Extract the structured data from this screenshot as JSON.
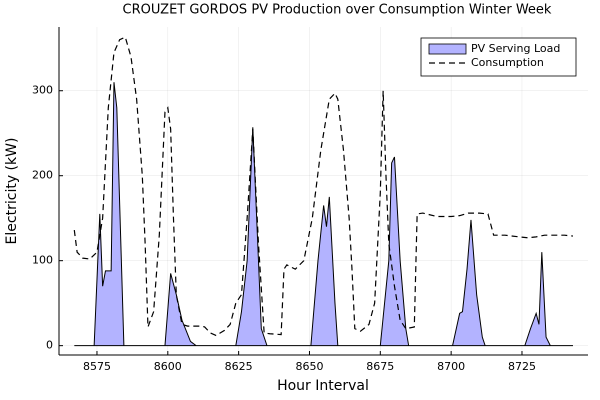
{
  "chart_data": {
    "type": "area",
    "title": "CROUZET GORDOS PV Production over Consumption Winter Week",
    "x_label": "Hour Interval",
    "y_label": "Electricity (kW)",
    "xlim": [
      8561.6,
      8748.3
    ],
    "ylim": [
      -11,
      375
    ],
    "xticks": [
      8575,
      8600,
      8625,
      8650,
      8675,
      8700,
      8725
    ],
    "yticks": [
      0,
      100,
      200,
      300
    ],
    "grid": true,
    "legend": "top right",
    "series": [
      {
        "name": "PV Serving Load",
        "type": "area",
        "color": "#b3b3ff",
        "line_color": "#000000",
        "x": [
          8567,
          8574,
          8576,
          8577,
          8578,
          8580,
          8581,
          8582,
          8584.5,
          8599,
          8601,
          8603,
          8605,
          8608,
          8610,
          8624,
          8626,
          8628,
          8630,
          8632,
          8633,
          8635,
          8650.5,
          8653,
          8655,
          8656,
          8657,
          8659,
          8660,
          8675,
          8678,
          8679,
          8680,
          8682,
          8684,
          8685,
          8700.5,
          8703,
          8704,
          8705.6,
          8707,
          8709,
          8711,
          8712,
          8726,
          8728,
          8730,
          8731,
          8732,
          8733.5,
          8735,
          8743
        ],
        "values": [
          0,
          0,
          155,
          70,
          88,
          88,
          310,
          280,
          0,
          0,
          85,
          60,
          30,
          5,
          0,
          0,
          40,
          100,
          257,
          100,
          20,
          0,
          0,
          100,
          165,
          140,
          175,
          50,
          0,
          0,
          100,
          215,
          222,
          100,
          20,
          0,
          0,
          38,
          40,
          90,
          148,
          60,
          10,
          0,
          0,
          20,
          38,
          25,
          110,
          10,
          0,
          0
        ]
      },
      {
        "name": "Consumption",
        "type": "line",
        "dash": true,
        "color": "#000000",
        "x": [
          8567,
          8568,
          8570,
          8572.5,
          8575,
          8577,
          8579,
          8581,
          8583,
          8585,
          8587,
          8589,
          8591,
          8592,
          8593,
          8595,
          8597,
          8599,
          8600,
          8601,
          8602,
          8603,
          8605,
          8607,
          8612,
          8613,
          8615,
          8617,
          8620,
          8622,
          8624,
          8626,
          8628,
          8630,
          8632,
          8634,
          8636,
          8640,
          8641,
          8642,
          8645,
          8648,
          8651,
          8654,
          8657,
          8659,
          8660,
          8662,
          8664,
          8665,
          8666,
          8668,
          8671,
          8673,
          8675,
          8676,
          8677,
          8678,
          8680,
          8682,
          8684,
          8687,
          8688,
          8690,
          8695,
          8700,
          8703,
          8706,
          8710,
          8713,
          8715,
          8719,
          8724,
          8727,
          8730,
          8733,
          8736,
          8740,
          8743
        ],
        "values": [
          136,
          110,
          103,
          102,
          110,
          150,
          280,
          345,
          360,
          363,
          340,
          290,
          200,
          120,
          22,
          40,
          130,
          275,
          280,
          255,
          150,
          60,
          25,
          23,
          23,
          22,
          15,
          12,
          18,
          25,
          50,
          60,
          150,
          255,
          120,
          15,
          14,
          13,
          90,
          95,
          90,
          100,
          150,
          230,
          290,
          297,
          290,
          230,
          150,
          90,
          20,
          17,
          25,
          50,
          180,
          300,
          200,
          120,
          70,
          30,
          20,
          22,
          155,
          156,
          152,
          152,
          153,
          156,
          156,
          155,
          130,
          130,
          128,
          127,
          128,
          130,
          130,
          130,
          129
        ]
      }
    ]
  }
}
